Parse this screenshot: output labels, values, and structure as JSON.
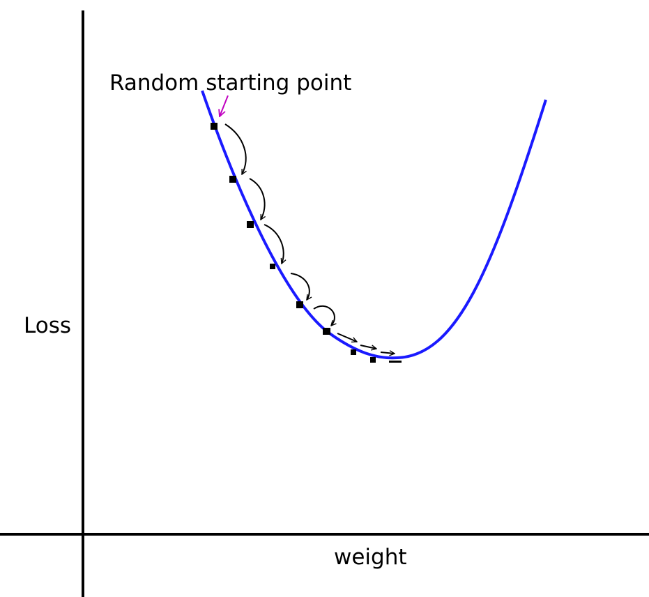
{
  "labels": {
    "start": "Random starting point",
    "y_axis": "Loss",
    "x_axis": "weight"
  }
}
